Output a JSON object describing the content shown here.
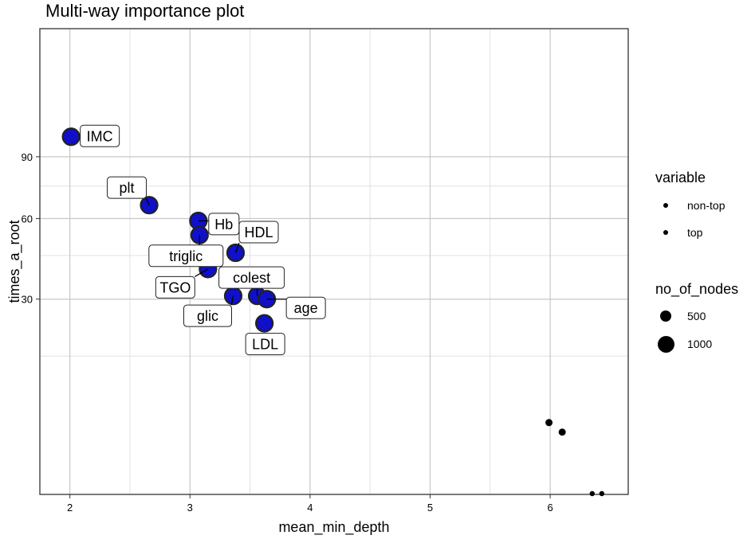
{
  "chart_data": {
    "type": "scatter",
    "title": "Multi-way importance plot",
    "xlabel": "mean_min_depth",
    "ylabel": "times_a_root",
    "xlim": [
      1.75,
      6.65
    ],
    "x_ticks": [
      2,
      3,
      4,
      5,
      6
    ],
    "y_ticks": [
      30,
      60,
      90
    ],
    "y_scale": "sqrt",
    "grid": true,
    "legend_placement": "right",
    "colors": {
      "top": "#0f10c8",
      "top_outline": "#222222",
      "non_top": "#000000",
      "grid": "#c8c8c8",
      "panel_border": "#333333"
    },
    "legend": {
      "variable": {
        "title": "variable",
        "entries": [
          "non-top",
          "top"
        ]
      },
      "size": {
        "title": "no_of_nodes",
        "entries": [
          "500",
          "1000"
        ]
      }
    },
    "points": [
      {
        "label": "IMC",
        "x": 2.01,
        "y": 101,
        "variable": "top"
      },
      {
        "label": "plt",
        "x": 2.66,
        "y": 66,
        "variable": "top"
      },
      {
        "label": "Hb",
        "x": 3.07,
        "y": 59,
        "variable": "top"
      },
      {
        "label": "triglic",
        "x": 3.08,
        "y": 53,
        "variable": "top"
      },
      {
        "label": "HDL",
        "x": 3.38,
        "y": 46,
        "variable": "top"
      },
      {
        "label": "TGO",
        "x": 3.15,
        "y": 40,
        "variable": "top"
      },
      {
        "label": "glic",
        "x": 3.36,
        "y": 31,
        "variable": "top"
      },
      {
        "label": "colest",
        "x": 3.56,
        "y": 31,
        "variable": "top"
      },
      {
        "label": "age",
        "x": 3.64,
        "y": 30,
        "variable": "top"
      },
      {
        "label": "LDL",
        "x": 3.62,
        "y": 23,
        "variable": "top"
      },
      {
        "x": 5.99,
        "y": 4,
        "variable": "non-top"
      },
      {
        "x": 6.1,
        "y": 3,
        "variable": "non-top"
      },
      {
        "x": 6.35,
        "y": 0,
        "variable": "non-top"
      },
      {
        "x": 6.43,
        "y": 0,
        "variable": "non-top"
      }
    ]
  }
}
